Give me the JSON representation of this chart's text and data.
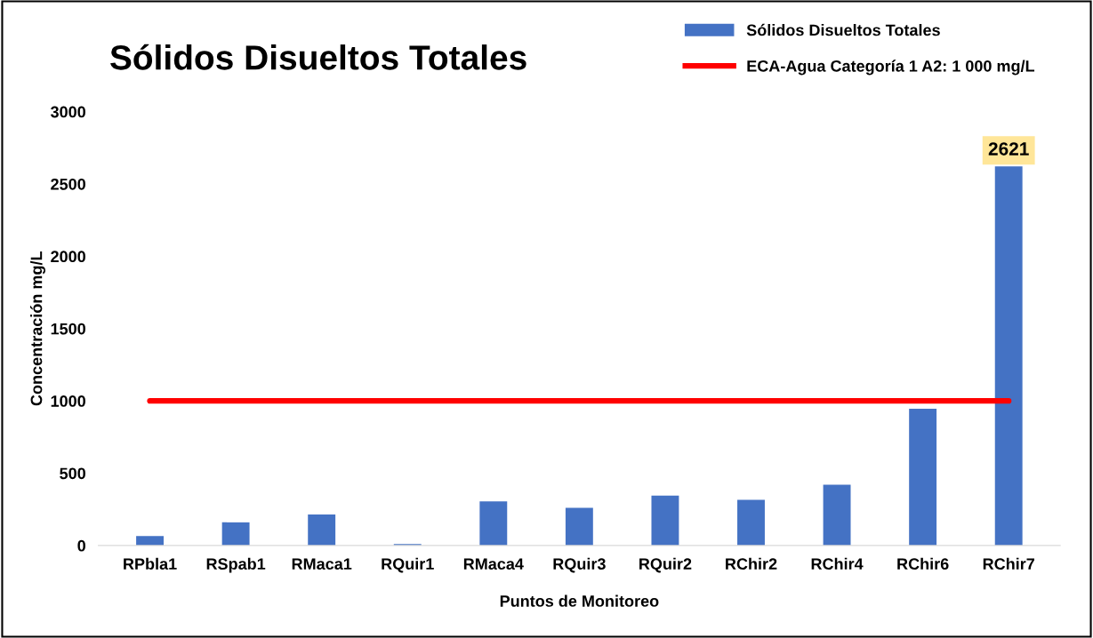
{
  "chart_data": {
    "type": "bar",
    "title": "Sólidos Disueltos Totales",
    "xlabel": "Puntos de Monitoreo",
    "ylabel": "Concentración mg/L",
    "categories": [
      "RPbla1",
      "RSpab1",
      "RMaca1",
      "RQuir1",
      "RMaca4",
      "RQuir3",
      "RQuir2",
      "RChir2",
      "RChir4",
      "RChir6",
      "RChir7"
    ],
    "series": [
      {
        "name": "Sólidos Disueltos Totales",
        "color": "#4472c4",
        "values": [
          65,
          160,
          215,
          10,
          305,
          260,
          345,
          315,
          420,
          945,
          2621
        ],
        "value_labels": [
          null,
          null,
          null,
          null,
          null,
          null,
          null,
          null,
          null,
          null,
          "2621"
        ]
      },
      {
        "name": "ECA-Agua Categoría 1 A2: 1 000 mg/L",
        "type": "line",
        "color": "#ff0000",
        "values": [
          1000,
          1000,
          1000,
          1000,
          1000,
          1000,
          1000,
          1000,
          1000,
          1000,
          1000
        ]
      }
    ],
    "ylim": [
      0,
      3000
    ],
    "yticks": [
      0,
      500,
      1000,
      1500,
      2000,
      2500,
      3000
    ],
    "grid": false,
    "legend": "top right"
  }
}
